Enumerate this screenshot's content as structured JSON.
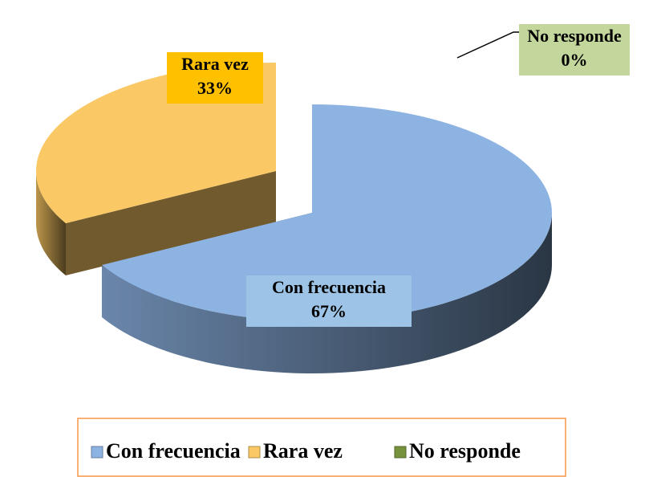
{
  "chart_data": {
    "type": "pie3d",
    "categories": [
      "Con frecuencia",
      "Rara vez",
      "No responde"
    ],
    "values": [
      67,
      33,
      0
    ],
    "value_labels": [
      "67%",
      "33%",
      "0%"
    ],
    "colors": [
      "#8db3e2",
      "#fac864",
      "#76923c"
    ],
    "legend": "bottom"
  }
}
